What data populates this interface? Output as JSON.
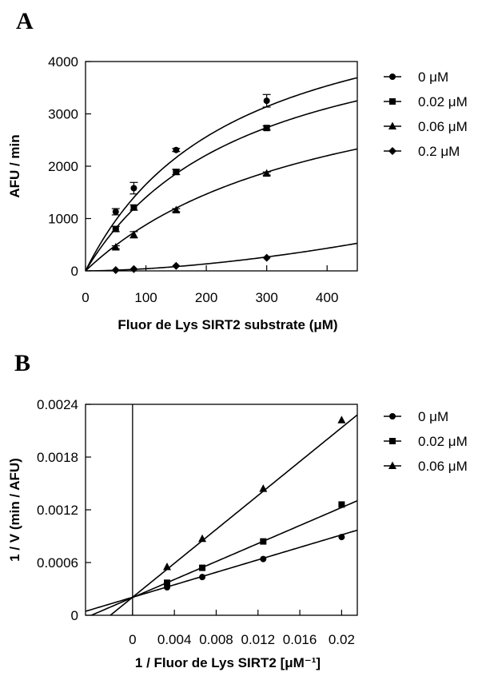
{
  "chart_data": [
    {
      "panel": "A",
      "type": "line",
      "xlabel": "Fluor de Lys SIRT2 substrate (μM)",
      "ylabel": "AFU / min",
      "xlim": [
        0,
        450
      ],
      "ylim": [
        0,
        4000
      ],
      "xticks": [
        0,
        100,
        200,
        300,
        400
      ],
      "xtick_labels": [
        "0",
        "100",
        "200",
        "300",
        "400"
      ],
      "yticks": [
        0,
        1000,
        2000,
        3000,
        4000
      ],
      "ytick_labels": [
        "0",
        "1000",
        "2000",
        "3000",
        "4000"
      ],
      "grid": false,
      "legend_position": "right",
      "series": [
        {
          "name": "0 μM",
          "marker": "circle",
          "fit": {
            "model": "michaelis-menten",
            "vmax": 5700,
            "km": 245
          },
          "points": [
            {
              "x": 50,
              "y": 1130,
              "err": 60
            },
            {
              "x": 80,
              "y": 1580,
              "err": 110
            },
            {
              "x": 150,
              "y": 2310,
              "err": 30
            },
            {
              "x": 300,
              "y": 3250,
              "err": 120
            }
          ]
        },
        {
          "name": "0.02 μM",
          "marker": "square",
          "fit": {
            "model": "michaelis-menten",
            "vmax": 5200,
            "km": 270
          },
          "points": [
            {
              "x": 50,
              "y": 800,
              "err": 50
            },
            {
              "x": 80,
              "y": 1210,
              "err": 50
            },
            {
              "x": 150,
              "y": 1890,
              "err": 50
            },
            {
              "x": 300,
              "y": 2730,
              "err": 40
            }
          ]
        },
        {
          "name": "0.06 μM",
          "marker": "triangle",
          "fit": {
            "model": "michaelis-menten",
            "vmax": 4400,
            "km": 400
          },
          "points": [
            {
              "x": 50,
              "y": 450,
              "err": 30
            },
            {
              "x": 80,
              "y": 690,
              "err": 60
            },
            {
              "x": 150,
              "y": 1160,
              "err": 30
            },
            {
              "x": 300,
              "y": 1860,
              "err": 30
            }
          ]
        },
        {
          "name": "0.2 μM",
          "marker": "diamond",
          "fit": {
            "model": "power",
            "a": 0.0173,
            "b": 1.69
          },
          "points": [
            {
              "x": 50,
              "y": 15,
              "err": 0
            },
            {
              "x": 80,
              "y": 35,
              "err": 0
            },
            {
              "x": 150,
              "y": 95,
              "err": 0
            },
            {
              "x": 300,
              "y": 250,
              "err": 0
            }
          ]
        }
      ]
    },
    {
      "panel": "B",
      "type": "scatter",
      "xlabel": "1 / Fluor de Lys SIRT2 [μM⁻¹]",
      "ylabel": "1 / V (min / AFU)",
      "xlim": [
        -0.0045,
        0.0215
      ],
      "ylim": [
        0,
        0.0024
      ],
      "xticks": [
        0,
        0.004,
        0.008,
        0.012,
        0.016,
        0.02
      ],
      "xtick_labels": [
        "0",
        "0.004",
        "0.008",
        "0.012",
        "0.016",
        "0.02"
      ],
      "yticks": [
        0,
        0.0006,
        0.0012,
        0.0018,
        0.0024
      ],
      "ytick_labels": [
        "0",
        "0.0006",
        "0.0012",
        "0.0018",
        "0.0024"
      ],
      "grid": false,
      "legend_position": "right",
      "series": [
        {
          "name": "0 μM",
          "marker": "circle",
          "fit": {
            "slope": 0.0355,
            "intercept": 0.000205
          },
          "points": [
            {
              "x": 0.0033,
              "y": 0.000318
            },
            {
              "x": 0.00667,
              "y": 0.000435
            },
            {
              "x": 0.0125,
              "y": 0.00064
            },
            {
              "x": 0.02,
              "y": 0.00089
            }
          ]
        },
        {
          "name": "0.02 μM",
          "marker": "square",
          "fit": {
            "slope": 0.0512,
            "intercept": 0.000202
          },
          "points": [
            {
              "x": 0.0033,
              "y": 0.00037
            },
            {
              "x": 0.00667,
              "y": 0.00054
            },
            {
              "x": 0.0125,
              "y": 0.00084
            },
            {
              "x": 0.02,
              "y": 0.00126
            }
          ]
        },
        {
          "name": "0.06 μM",
          "marker": "triangle",
          "fit": {
            "slope": 0.0965,
            "intercept": 0.000205
          },
          "points": [
            {
              "x": 0.0033,
              "y": 0.00055
            },
            {
              "x": 0.00667,
              "y": 0.00087
            },
            {
              "x": 0.0125,
              "y": 0.00144
            },
            {
              "x": 0.02,
              "y": 0.00222
            }
          ]
        }
      ]
    }
  ]
}
